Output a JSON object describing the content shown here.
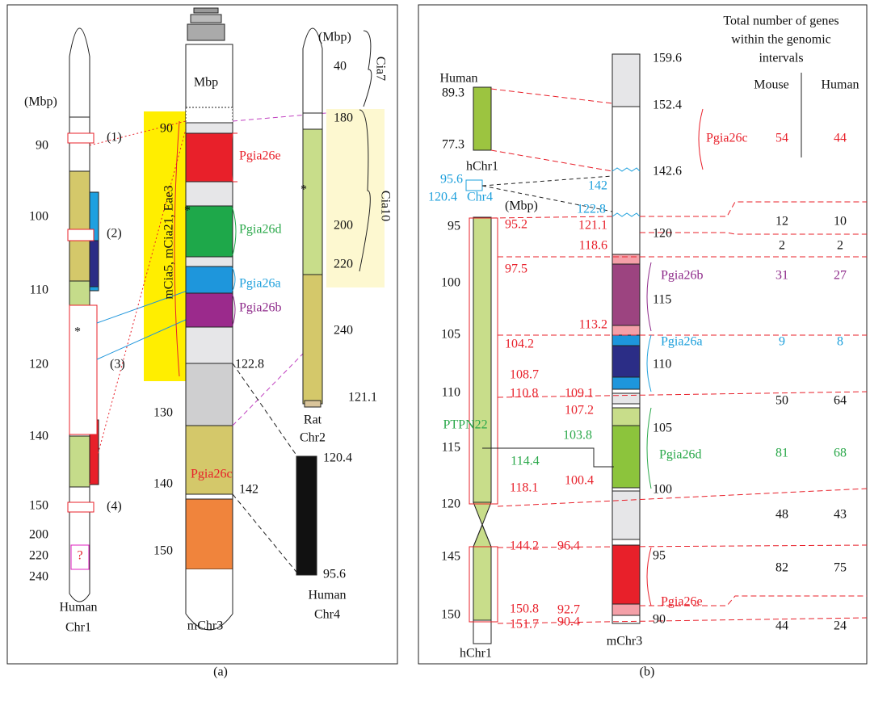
{
  "panel_a": {
    "labels": [
      "(Mbp)",
      "90",
      "100",
      "110",
      "120",
      "140",
      "150",
      "200",
      "220",
      "240",
      "(1)",
      "(2)",
      "(3)",
      "(4)",
      "?",
      "*",
      "Human",
      "Chr1",
      "Mbp",
      "90",
      "130",
      "140",
      "150",
      "122.8",
      "142",
      "mCia5, mCia21, Eae3",
      "Pgia26e",
      "Pgia26d",
      "Pgia26a",
      "Pgia26b",
      "Pgia26c",
      "*",
      "mChr3",
      "(Mbp)",
      "40",
      "Cia7",
      "180",
      "200",
      "220",
      "240",
      "Cia10",
      "*",
      "Rat",
      "Chr2",
      "121.1",
      "120.4",
      "95.6",
      "Human",
      "Chr4"
    ]
  },
  "panel_b": {
    "labels": [
      "Human",
      "89.3",
      "77.3",
      "hChr1",
      "95.6",
      "120.4",
      "Chr4",
      "(Mbp)",
      "95",
      "100",
      "105",
      "110",
      "115",
      "120",
      "145",
      "150",
      "95.2",
      "97.5",
      "104.2",
      "108.7",
      "110.8",
      "118.1",
      "144.2",
      "150.8",
      "151.7",
      "121.1",
      "118.6",
      "113.2",
      "109.1",
      "107.2",
      "100.4",
      "96.4",
      "92.7",
      "90.4",
      "142",
      "122.8",
      "PTPN22",
      "103.8",
      "114.4",
      "159.6",
      "152.4",
      "142.6",
      "120",
      "115",
      "110",
      "105",
      "100",
      "95",
      "90",
      "hChr1",
      "mChr3",
      "Pgia26c",
      "Pgia26b",
      "Pgia26a",
      "Pgia26d",
      "Pgia26e"
    ],
    "table": {
      "title": [
        "Total number of genes",
        "within the genomic",
        "intervals"
      ],
      "headers": [
        "Mouse",
        "Human"
      ],
      "rows": [
        [
          "54",
          "44"
        ],
        [
          "12",
          "10"
        ],
        [
          "2",
          "2"
        ],
        [
          "31",
          "27"
        ],
        [
          "9",
          "8"
        ],
        [
          "50",
          "64"
        ],
        [
          "81",
          "68"
        ],
        [
          "48",
          "43"
        ],
        [
          "82",
          "75"
        ],
        [
          "44",
          "24"
        ]
      ]
    }
  },
  "captions": [
    "(a)",
    "(b)"
  ]
}
